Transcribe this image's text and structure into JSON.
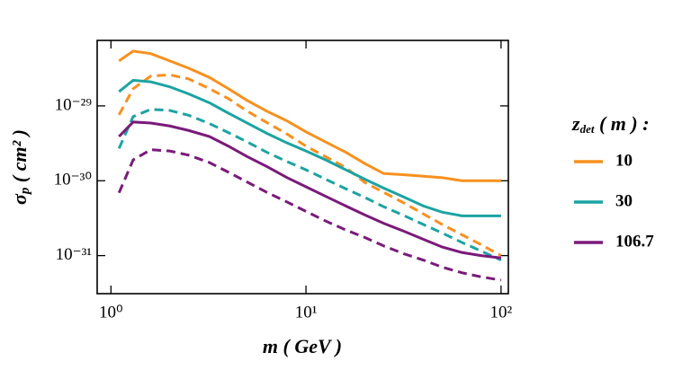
{
  "chart_data": {
    "type": "line",
    "x_label": "m ( GeV )",
    "y_label": {
      "base": "σ",
      "subscript": "p",
      "rest": " ( cm² )"
    },
    "legend_title": {
      "base": "z",
      "subscript": "det",
      "rest": " ( m ) :"
    },
    "x_log": true,
    "y_log": true,
    "legend": "right outside",
    "xlim": [
      0.85,
      109
    ],
    "ylim": [
      3.1e-32,
      7.5e-29
    ],
    "xticks": [
      {
        "value": 1,
        "label": "10⁰"
      },
      {
        "value": 10,
        "label": "10¹"
      },
      {
        "value": 100,
        "label": "10²"
      }
    ],
    "yticks": [
      {
        "value": 1e-31,
        "label": "10⁻³¹"
      },
      {
        "value": 1e-30,
        "label": "10⁻³⁰"
      },
      {
        "value": 1e-29,
        "label": "10⁻²⁹"
      }
    ],
    "x": [
      1.1,
      1.3,
      1.6,
      2,
      2.5,
      3.2,
      4,
      5,
      6.3,
      8,
      10,
      12.6,
      16,
      20,
      25,
      32,
      40,
      50,
      63,
      79,
      100
    ],
    "series": [
      {
        "name": "10",
        "color": "#f7901e",
        "dash": false,
        "values": [
          4e-29,
          5.4e-29,
          5e-29,
          4e-29,
          3.2e-29,
          2.4e-29,
          1.7e-29,
          1.18e-29,
          8.5e-30,
          6.3e-30,
          4.5e-30,
          3.3e-30,
          2.4e-30,
          1.7e-30,
          1.25e-30,
          1.2e-30,
          1.15e-30,
          1.1e-30,
          1e-30,
          1e-30,
          1e-30
        ]
      },
      {
        "color": "#f7901e",
        "dash": true,
        "values": [
          7.6e-30,
          1.7e-29,
          2.5e-29,
          2.6e-29,
          2.3e-29,
          1.7e-29,
          1.25e-29,
          8.5e-30,
          6e-30,
          4.2e-30,
          2.9e-30,
          2.1e-30,
          1.5e-30,
          9.5e-31,
          7e-31,
          5e-31,
          3.6e-31,
          2.6e-31,
          1.9e-31,
          1.4e-31,
          1e-31
        ]
      },
      {
        "name": "30",
        "color": "#1ca3a3",
        "dash": false,
        "values": [
          1.55e-29,
          2.2e-29,
          2.1e-29,
          1.8e-29,
          1.45e-29,
          1.1e-29,
          8e-30,
          5.9e-30,
          4.3e-30,
          3.2e-30,
          2.5e-30,
          1.9e-30,
          1.4e-30,
          1.05e-30,
          8e-31,
          6e-31,
          4.6e-31,
          3.8e-31,
          3.4e-31,
          3.4e-31,
          3.4e-31
        ]
      },
      {
        "color": "#1ca3a3",
        "dash": true,
        "values": [
          2.7e-30,
          7.2e-30,
          9e-30,
          8.7e-30,
          7.5e-30,
          5.8e-30,
          4.4e-30,
          3.3e-30,
          2.4e-30,
          1.8e-30,
          1.4e-30,
          1.05e-30,
          7.8e-31,
          6e-31,
          4.5e-31,
          3.4e-31,
          2.6e-31,
          2e-31,
          1.5e-31,
          1.15e-31,
          8.7e-32
        ]
      },
      {
        "name": "106.7",
        "color": "#7a1a7a",
        "dash": false,
        "values": [
          3.9e-30,
          6.1e-30,
          5.9e-30,
          5.4e-30,
          4.7e-30,
          3.9e-30,
          2.9e-30,
          2.1e-30,
          1.55e-30,
          1.1e-30,
          8.3e-31,
          6.2e-31,
          4.6e-31,
          3.5e-31,
          2.7e-31,
          2.1e-31,
          1.65e-31,
          1.3e-31,
          1.1e-31,
          1e-31,
          9.3e-32
        ]
      },
      {
        "color": "#7a1a7a",
        "dash": true,
        "values": [
          6.9e-31,
          1.9e-30,
          2.6e-30,
          2.5e-30,
          2.2e-30,
          1.75e-30,
          1.3e-30,
          9.6e-31,
          7e-31,
          5.2e-31,
          3.9e-31,
          2.9e-31,
          2.2e-31,
          1.75e-31,
          1.35e-31,
          1.05e-31,
          8.7e-32,
          7e-32,
          5.9e-32,
          5.2e-32,
          4.7e-32
        ]
      }
    ]
  }
}
